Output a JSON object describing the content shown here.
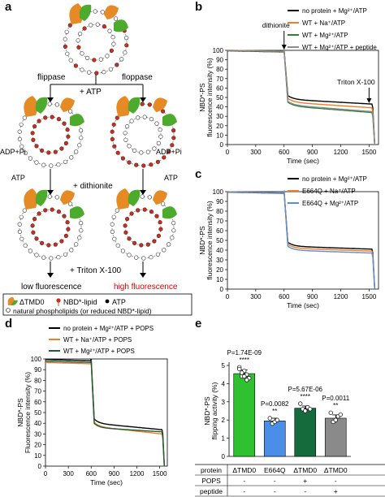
{
  "figure": {
    "panels": {
      "a": "a",
      "b": "b",
      "c": "c",
      "d": "d",
      "e": "e"
    }
  },
  "panel_a": {
    "flippase": "flippase",
    "floppase": "floppase",
    "atp_plus": "+ ATP",
    "adp_left": "ADP+Pi",
    "adp_right": "ADP+Pi",
    "atp_left": "ATP",
    "atp_right": "ATP",
    "dithionite": "+ dithionite",
    "triton": "+ Triton X-100",
    "low": "low fluorescence",
    "high": "high fluorescence",
    "legend_tmd0": "ΔTMD0",
    "legend_nbd": "NBD*-lipid",
    "legend_atp": "ATP",
    "legend_natural": "natural phospholipids (or reduced NBD*-lipid)",
    "colors": {
      "low": "#111111",
      "high": "#d40000",
      "green": "#3a9a2a",
      "orange": "#e08020",
      "red": "#d42a1a"
    }
  },
  "chart_data": [
    {
      "panel": "b",
      "type": "line",
      "ylabel": "NBD*-PS fluorescence intensity (%)",
      "xlabel": "Time (sec)",
      "xlim": [
        0,
        1600
      ],
      "ylim": [
        0,
        100
      ],
      "xticks": [
        0,
        300,
        600,
        900,
        1200,
        1500
      ],
      "yticks": [
        0,
        10,
        20,
        30,
        40,
        50,
        60,
        70,
        80,
        90,
        100
      ],
      "annotations": [
        {
          "text": "dithionite",
          "x": 600
        },
        {
          "text": "Triton X-100",
          "x": 1500
        }
      ],
      "series": [
        {
          "name": "no protein + Mg²⁺/ATP",
          "color": "#000000",
          "plateau": 100,
          "drop": 48,
          "end": 43
        },
        {
          "name": "WT + Na⁺/ATP",
          "color": "#f07d27",
          "plateau": 100,
          "drop": 45,
          "end": 39
        },
        {
          "name": "WT + Mg²⁺/ATP",
          "color": "#2e7d3a",
          "plateau": 100,
          "drop": 41,
          "end": 34
        },
        {
          "name": "WT + Mg²⁺/ATP + peptide",
          "color": "#8c8c8c",
          "plateau": 100,
          "drop": 42,
          "end": 35
        }
      ]
    },
    {
      "panel": "c",
      "type": "line",
      "ylabel": "NBD*-PS fluorescence intensity (%)",
      "xlabel": "Time (sec)",
      "xlim": [
        0,
        1600
      ],
      "ylim": [
        0,
        100
      ],
      "xticks": [
        0,
        300,
        600,
        900,
        1200,
        1500
      ],
      "yticks": [
        0,
        10,
        20,
        30,
        40,
        50,
        60,
        70,
        80,
        90,
        100
      ],
      "series": [
        {
          "name": "no protein + Mg²⁺/ATP",
          "color": "#000000",
          "plateau": 100,
          "drop": 44,
          "end": 41
        },
        {
          "name": "E664Q + Na⁺/ATP",
          "color": "#f07d27",
          "plateau": 100,
          "drop": 42,
          "end": 39
        },
        {
          "name": "E664Q + Mg²⁺/ATP",
          "color": "#5a8ed8",
          "plateau": 100,
          "drop": 40,
          "end": 37
        }
      ]
    },
    {
      "panel": "d",
      "type": "line",
      "ylabel": "NBD*-PS Fluorescence intensity (%)",
      "xlabel": "Time (sec)",
      "xlim": [
        0,
        1600
      ],
      "ylim": [
        0,
        100
      ],
      "xticks": [
        0,
        300,
        600,
        900,
        1200,
        1500
      ],
      "yticks": [
        0,
        10,
        20,
        30,
        40,
        50,
        60,
        70,
        80,
        90,
        100
      ],
      "series": [
        {
          "name": "no protein + Mg²⁺/ATP + POPS",
          "color": "#000000",
          "plateau": 100,
          "drop": 40,
          "end": 34
        },
        {
          "name": "WT + Na⁺/ATP + POPS",
          "color": "#f07d27",
          "plateau": 97,
          "drop": 37,
          "end": 30
        },
        {
          "name": "WT + Mg²⁺/ATP + POPS",
          "color": "#1f5e38",
          "plateau": 98,
          "drop": 36,
          "end": 32
        }
      ]
    },
    {
      "panel": "e",
      "type": "bar",
      "ylabel": "NBD*-PS flipping activity (%)",
      "ylim": [
        0,
        5
      ],
      "yticks": [
        0,
        1,
        2,
        3,
        4,
        5
      ],
      "categories": [
        "ΔTMD0",
        "E664Q",
        "ΔTMD0",
        "ΔTMD0"
      ],
      "values": [
        4.55,
        1.95,
        2.65,
        2.1
      ],
      "errors": [
        0.2,
        0.15,
        0.12,
        0.18
      ],
      "colors": [
        "#2fc12f",
        "#4b8ee8",
        "#156b3c",
        "#8a8a8a"
      ],
      "points": [
        [
          4.9,
          4.4,
          4.7,
          4.5,
          4.3,
          4.8,
          4.6,
          4.4,
          4.2
        ],
        [
          2.1,
          1.8,
          1.9,
          2.0
        ],
        [
          2.9,
          2.6,
          2.5,
          2.7,
          2.6
        ],
        [
          2.4,
          1.9,
          2.0,
          2.2,
          2.3
        ]
      ],
      "pvalues": [
        "P=1.74E-09",
        "P=0.0082",
        "P=5.67E-06",
        "P=0.0011"
      ],
      "stars": [
        "****",
        "**",
        "****",
        "**"
      ],
      "table": {
        "rows": [
          {
            "label": "protein",
            "values": [
              "ΔTMD0",
              "E664Q",
              "ΔTMD0",
              "ΔTMD0"
            ]
          },
          {
            "label": "POPS",
            "values": [
              "-",
              "-",
              "+",
              "-"
            ]
          },
          {
            "label": "peptide",
            "values": [
              "-",
              "-",
              "-",
              "+"
            ]
          }
        ]
      }
    }
  ]
}
